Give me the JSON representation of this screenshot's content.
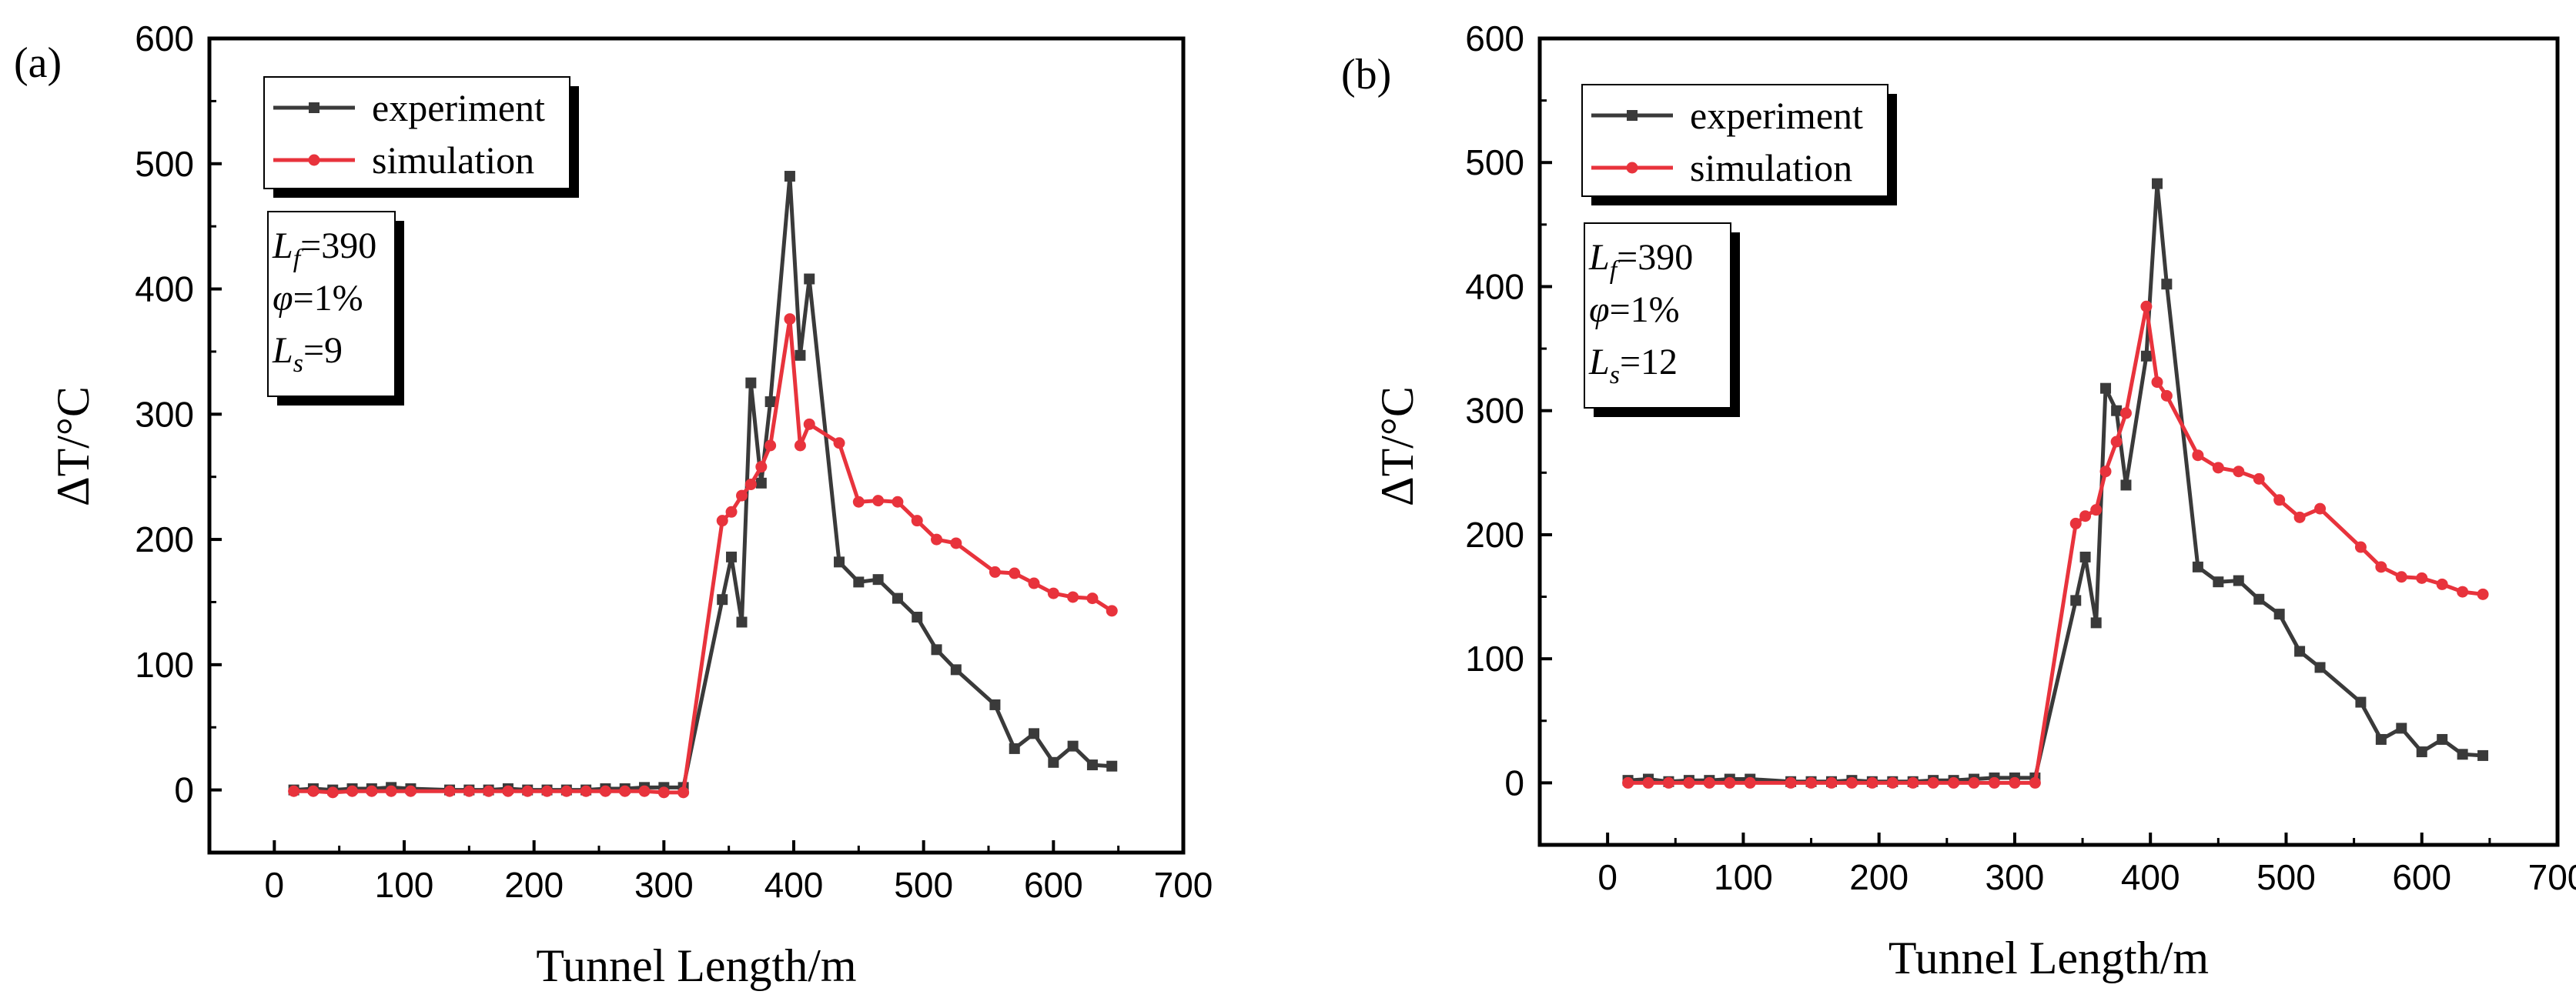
{
  "chart_data": [
    {
      "type": "line",
      "panel_label": "(a)",
      "xlabel": "Tunnel Length/m",
      "ylabel": "ΔT/°C",
      "xlim": [
        -50,
        700
      ],
      "ylim": [
        -50,
        600
      ],
      "xticks": [
        0,
        100,
        200,
        300,
        400,
        500,
        600,
        700
      ],
      "yticks": [
        0,
        100,
        200,
        300,
        400,
        500,
        600
      ],
      "x_tick_labels": [
        "0",
        "100",
        "200",
        "300",
        "400",
        "500",
        "600",
        "700"
      ],
      "y_tick_labels": [
        "0",
        "100",
        "200",
        "300",
        "400",
        "500",
        "600"
      ],
      "legend": [
        "experiment",
        "simulation"
      ],
      "params": [
        {
          "sym": "L",
          "sub": "f",
          "rest": "=390"
        },
        {
          "sym": "φ",
          "sub": "",
          "rest": "=1%"
        },
        {
          "sym": "L",
          "sub": "s",
          "rest": "=9"
        }
      ],
      "series": [
        {
          "name": "experiment",
          "color": "#3a3a3a",
          "marker": "square",
          "x": [
            15,
            30,
            45,
            60,
            75,
            90,
            105,
            135,
            150,
            165,
            180,
            195,
            210,
            225,
            240,
            255,
            270,
            285,
            300,
            315,
            345,
            352,
            360,
            367,
            375,
            382,
            397,
            405,
            412,
            435,
            450,
            465,
            480,
            495,
            510,
            525,
            555,
            570,
            585,
            600,
            615,
            630,
            645
          ],
          "y": [
            0,
            1,
            0,
            1,
            1,
            2,
            1,
            0,
            0,
            0,
            1,
            0,
            0,
            0,
            0,
            1,
            1,
            2,
            2,
            2,
            152,
            186,
            134,
            325,
            245,
            310,
            490,
            347,
            408,
            182,
            166,
            168,
            153,
            138,
            112,
            96,
            68,
            33,
            45,
            22,
            35,
            20,
            19
          ]
        },
        {
          "name": "simulation",
          "color": "#e8333c",
          "marker": "circle",
          "x": [
            15,
            30,
            45,
            60,
            75,
            90,
            105,
            135,
            150,
            165,
            180,
            195,
            210,
            225,
            240,
            255,
            270,
            285,
            300,
            315,
            345,
            352,
            360,
            367,
            375,
            382,
            397,
            405,
            412,
            435,
            450,
            465,
            480,
            495,
            510,
            525,
            555,
            570,
            585,
            600,
            615,
            630,
            645
          ],
          "y": [
            -1,
            -1,
            -2,
            -1,
            -1,
            -1,
            -1,
            -1,
            -1,
            -1,
            -1,
            -1,
            -1,
            -1,
            -1,
            -1,
            -1,
            -1,
            -2,
            -2,
            215,
            222,
            235,
            244,
            258,
            275,
            376,
            275,
            292,
            277,
            230,
            231,
            230,
            215,
            200,
            197,
            174,
            173,
            165,
            157,
            154,
            153,
            143
          ]
        }
      ]
    },
    {
      "type": "line",
      "panel_label": "(b)",
      "xlabel": "Tunnel Length/m",
      "ylabel": "ΔT/°C",
      "xlim": [
        -50,
        700
      ],
      "ylim": [
        -50,
        600
      ],
      "xticks": [
        0,
        100,
        200,
        300,
        400,
        500,
        600,
        700
      ],
      "yticks": [
        0,
        100,
        200,
        300,
        400,
        500,
        600
      ],
      "x_tick_labels": [
        "0",
        "100",
        "200",
        "300",
        "400",
        "500",
        "600",
        "700"
      ],
      "y_tick_labels": [
        "0",
        "100",
        "200",
        "300",
        "400",
        "500",
        "600"
      ],
      "legend": [
        "experiment",
        "simulation"
      ],
      "params": [
        {
          "sym": "L",
          "sub": "f",
          "rest": "=390"
        },
        {
          "sym": "φ",
          "sub": "",
          "rest": "=1%"
        },
        {
          "sym": "L",
          "sub": "s",
          "rest": "=12"
        }
      ],
      "series": [
        {
          "name": "experiment",
          "color": "#3a3a3a",
          "marker": "square",
          "x": [
            15,
            30,
            45,
            60,
            75,
            90,
            105,
            135,
            150,
            165,
            180,
            195,
            210,
            225,
            240,
            255,
            270,
            285,
            300,
            315,
            345,
            352,
            360,
            367,
            375,
            382,
            397,
            405,
            412,
            435,
            450,
            465,
            480,
            495,
            510,
            525,
            555,
            570,
            585,
            600,
            615,
            630,
            645
          ],
          "y": [
            2,
            3,
            1,
            2,
            2,
            3,
            3,
            1,
            1,
            1,
            2,
            1,
            1,
            1,
            2,
            2,
            3,
            4,
            4,
            4,
            147,
            182,
            129,
            318,
            300,
            240,
            344,
            483,
            402,
            174,
            162,
            163,
            148,
            136,
            106,
            93,
            65,
            35,
            44,
            25,
            35,
            23,
            22
          ]
        },
        {
          "name": "simulation",
          "color": "#e8333c",
          "marker": "circle",
          "x": [
            15,
            30,
            45,
            60,
            75,
            90,
            105,
            135,
            150,
            165,
            180,
            195,
            210,
            225,
            240,
            255,
            270,
            285,
            300,
            315,
            345,
            352,
            360,
            367,
            375,
            382,
            397,
            405,
            412,
            435,
            450,
            465,
            480,
            495,
            510,
            525,
            555,
            570,
            585,
            600,
            615,
            630,
            645
          ],
          "y": [
            0,
            0,
            0,
            0,
            0,
            0,
            0,
            0,
            0,
            0,
            0,
            0,
            0,
            0,
            0,
            0,
            0,
            0,
            0,
            0,
            209,
            215,
            220,
            251,
            275,
            298,
            384,
            323,
            312,
            264,
            254,
            251,
            245,
            228,
            214,
            221,
            190,
            174,
            166,
            165,
            160,
            154,
            152
          ]
        }
      ]
    }
  ]
}
